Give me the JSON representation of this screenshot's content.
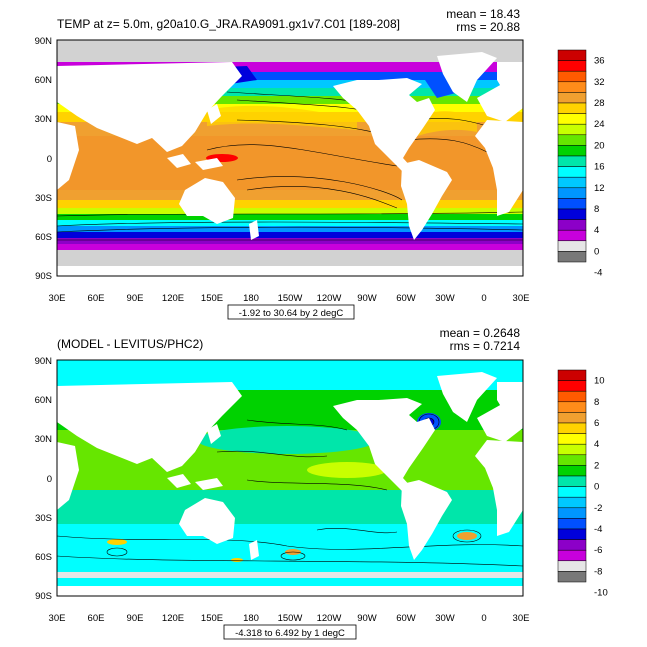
{
  "panels": [
    {
      "title": "TEMP at z=   5.0m, g20a10.G_JRA.RA9091.gx1v7.C01 [189-208]",
      "mean_label": "mean = 18.43",
      "rms_label": "rms = 20.88",
      "info": "-1.92 to 30.64 by 2 degC",
      "lat_ticks": [
        "90N",
        "60N",
        "30N",
        "0",
        "30S",
        "60S",
        "90S"
      ],
      "lon_ticks": [
        "30E",
        "60E",
        "90E",
        "120E",
        "150E",
        "180",
        "150W",
        "120W",
        "90W",
        "60W",
        "30W",
        "0",
        "30E"
      ],
      "colorbar_labels": [
        "36",
        "32",
        "28",
        "24",
        "20",
        "16",
        "12",
        "8",
        "4",
        "0",
        "-4"
      ],
      "colorbar_colors": [
        "#cc0000",
        "#ff0000",
        "#ff5a00",
        "#ff8c1a",
        "#f0a030",
        "#ffd200",
        "#ffff00",
        "#c8ff00",
        "#66e600",
        "#00d200",
        "#00e6aa",
        "#00ffff",
        "#00c8ff",
        "#0096ff",
        "#0050ff",
        "#0000dc",
        "#8c00c8",
        "#c800dc",
        "#e6e6e6",
        "#787878"
      ]
    },
    {
      "title": "(MODEL - LEVITUS/PHC2)",
      "mean_label": "mean = 0.2648",
      "rms_label": "rms = 0.7214",
      "info": "-4.318 to 6.492 by 1 degC",
      "lat_ticks": [
        "90N",
        "60N",
        "30N",
        "0",
        "30S",
        "60S",
        "90S"
      ],
      "lon_ticks": [
        "30E",
        "60E",
        "90E",
        "120E",
        "150E",
        "180",
        "150W",
        "120W",
        "90W",
        "60W",
        "30W",
        "0",
        "30E"
      ],
      "colorbar_labels": [
        "10",
        "8",
        "6",
        "4",
        "2",
        "0",
        "-2",
        "-4",
        "-6",
        "-8",
        "-10"
      ],
      "colorbar_colors": [
        "#cc0000",
        "#ff0000",
        "#ff5a00",
        "#ff8c1a",
        "#f0a030",
        "#ffd200",
        "#ffff00",
        "#c8ff00",
        "#66e600",
        "#00d200",
        "#00e6aa",
        "#00ffff",
        "#00c8ff",
        "#0096ff",
        "#0050ff",
        "#0000dc",
        "#8c00c8",
        "#c800dc",
        "#e6e6e6",
        "#787878"
      ]
    }
  ]
}
